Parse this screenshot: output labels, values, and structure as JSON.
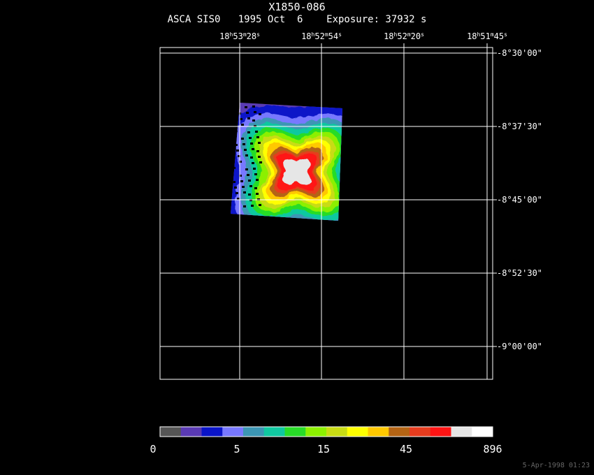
{
  "title": "X1850-086",
  "subtitle": "ASCA SIS0   1995 Oct  6    Exposure: 37932 s",
  "ra_labels": [
    {
      "h": "18",
      "m": "53",
      "s": "28"
    },
    {
      "h": "18",
      "m": "52",
      "s": "54"
    },
    {
      "h": "18",
      "m": "52",
      "s": "20"
    },
    {
      "h": "18",
      "m": "51",
      "s": "45"
    }
  ],
  "ra_units": {
    "h": "h",
    "m": "m",
    "s": "s"
  },
  "dec_labels": [
    "-8°30'00\"",
    "-8°37'30\"",
    "-8°45'00\"",
    "-8°52'30\"",
    "-9°00'00\""
  ],
  "colorbar": {
    "colors": [
      "#555555",
      "#5a3ab4",
      "#0a14c8",
      "#7878ff",
      "#3c96b4",
      "#10c8a0",
      "#28dc28",
      "#8cf000",
      "#c8dc14",
      "#ffff00",
      "#ffc800",
      "#b46414",
      "#e63c1e",
      "#ff1414",
      "#e6e6e6",
      "#ffffff"
    ],
    "labels": [
      "0",
      "5",
      "15",
      "45",
      "896"
    ]
  },
  "timestamp": "5-Apr-1998 01:23"
}
